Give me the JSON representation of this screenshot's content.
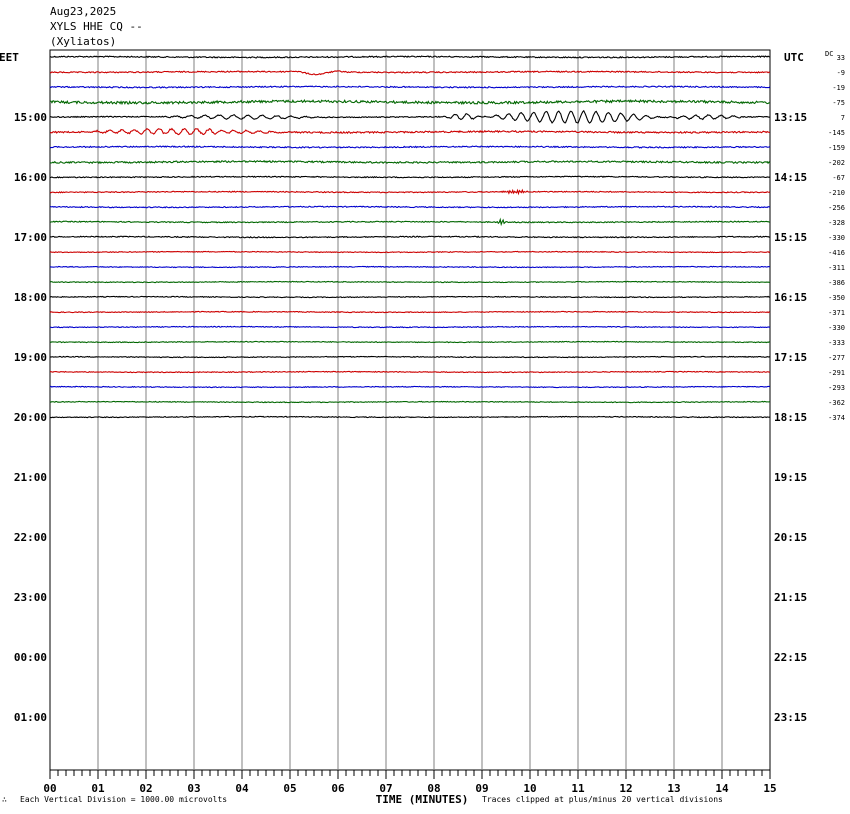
{
  "header": {
    "date": "Aug23,2025",
    "station_line": "XYLS HHE CQ --",
    "station_name": "(Xyliatos)"
  },
  "left_tz": "EET",
  "right_tz": "UTC",
  "dc_label": "DC",
  "footer": {
    "left_mark": "∴",
    "scale": "Each Vertical Division = 1000.00 microvolts",
    "xlabel": "TIME (MINUTES)",
    "clip_note": "Traces clipped at plus/minus 20 vertical divisions"
  },
  "colors": {
    "black": "#000000",
    "red": "#cc0000",
    "blue": "#0000cc",
    "green": "#006600",
    "grid": "#808080"
  },
  "chart_data": {
    "type": "line",
    "title": "XYLS HHE CQ --",
    "xlabel": "TIME (MINUTES)",
    "x_ticks": [
      "00",
      "01",
      "02",
      "03",
      "04",
      "05",
      "06",
      "07",
      "08",
      "09",
      "10",
      "11",
      "12",
      "13",
      "14",
      "15"
    ],
    "xlim": [
      0,
      15
    ],
    "trace_minutes": 15,
    "row_labels": [
      {
        "left": "",
        "right": ""
      },
      {
        "left": "15:00",
        "right": "13:15"
      },
      {
        "left": "16:00",
        "right": "14:15"
      },
      {
        "left": "17:00",
        "right": "15:15"
      },
      {
        "left": "18:00",
        "right": "16:15"
      },
      {
        "left": "19:00",
        "right": "17:15"
      },
      {
        "left": "20:00",
        "right": "18:15"
      },
      {
        "left": "21:00",
        "right": "19:15"
      },
      {
        "left": "22:00",
        "right": "20:15"
      },
      {
        "left": "23:00",
        "right": "21:15"
      },
      {
        "left": "00:00",
        "right": "22:15"
      },
      {
        "left": "01:00",
        "right": "23:15"
      }
    ],
    "traces": [
      {
        "color": "black",
        "dc": "33",
        "noise": 0.6,
        "events": []
      },
      {
        "color": "red",
        "dc": "-9",
        "noise": 0.6,
        "events": [
          {
            "start": 4.9,
            "end": 6.2,
            "amp": 2.5,
            "period": 1.3
          }
        ]
      },
      {
        "color": "blue",
        "dc": "-19",
        "noise": 0.6,
        "events": [
          {
            "start": 5.7,
            "end": 6.9,
            "amp": 3,
            "period": 0.04
          }
        ]
      },
      {
        "color": "green",
        "dc": "-75",
        "noise": 1.2,
        "events": []
      },
      {
        "color": "black",
        "dc": "7",
        "noise": 0.5,
        "events": [
          {
            "start": 2.2,
            "end": 5.8,
            "amp": 2,
            "period": 0.3
          },
          {
            "start": 8.2,
            "end": 9.0,
            "amp": 3,
            "period": 0.25
          },
          {
            "start": 9.0,
            "end": 12.8,
            "amp": 6,
            "period": 0.26
          },
          {
            "start": 12.8,
            "end": 14.5,
            "amp": 2,
            "period": 0.26
          }
        ]
      },
      {
        "color": "red",
        "dc": "-145",
        "noise": 0.8,
        "events": [
          {
            "start": 0.5,
            "end": 4.8,
            "amp": 2.5,
            "period": 0.26
          }
        ]
      },
      {
        "color": "blue",
        "dc": "-159",
        "noise": 0.6,
        "events": []
      },
      {
        "color": "green",
        "dc": "-202",
        "noise": 0.8,
        "events": []
      },
      {
        "color": "black",
        "dc": "-67",
        "noise": 0.5,
        "events": []
      },
      {
        "color": "red",
        "dc": "-210",
        "noise": 0.5,
        "events": [
          {
            "start": 9.4,
            "end": 10.0,
            "amp": 1.6,
            "period": 0.05
          }
        ]
      },
      {
        "color": "blue",
        "dc": "-256",
        "noise": 0.5,
        "events": []
      },
      {
        "color": "green",
        "dc": "-328",
        "noise": 0.5,
        "events": [
          {
            "start": 9.3,
            "end": 9.5,
            "amp": 2.5,
            "period": 0.03
          }
        ]
      },
      {
        "color": "black",
        "dc": "-330",
        "noise": 0.5,
        "events": []
      },
      {
        "color": "red",
        "dc": "-416",
        "noise": 0.4,
        "events": []
      },
      {
        "color": "blue",
        "dc": "-311",
        "noise": 0.4,
        "events": []
      },
      {
        "color": "green",
        "dc": "-386",
        "noise": 0.4,
        "events": []
      },
      {
        "color": "black",
        "dc": "-350",
        "noise": 0.4,
        "events": []
      },
      {
        "color": "red",
        "dc": "-371",
        "noise": 0.4,
        "events": []
      },
      {
        "color": "blue",
        "dc": "-330",
        "noise": 0.4,
        "events": []
      },
      {
        "color": "green",
        "dc": "-333",
        "noise": 0.4,
        "events": []
      },
      {
        "color": "black",
        "dc": "-277",
        "noise": 0.4,
        "events": []
      },
      {
        "color": "red",
        "dc": "-291",
        "noise": 0.4,
        "events": []
      },
      {
        "color": "blue",
        "dc": "-293",
        "noise": 0.4,
        "events": []
      },
      {
        "color": "green",
        "dc": "-362",
        "noise": 0.4,
        "events": []
      },
      {
        "color": "black",
        "dc": "-374",
        "noise": 0.4,
        "events": []
      }
    ]
  }
}
